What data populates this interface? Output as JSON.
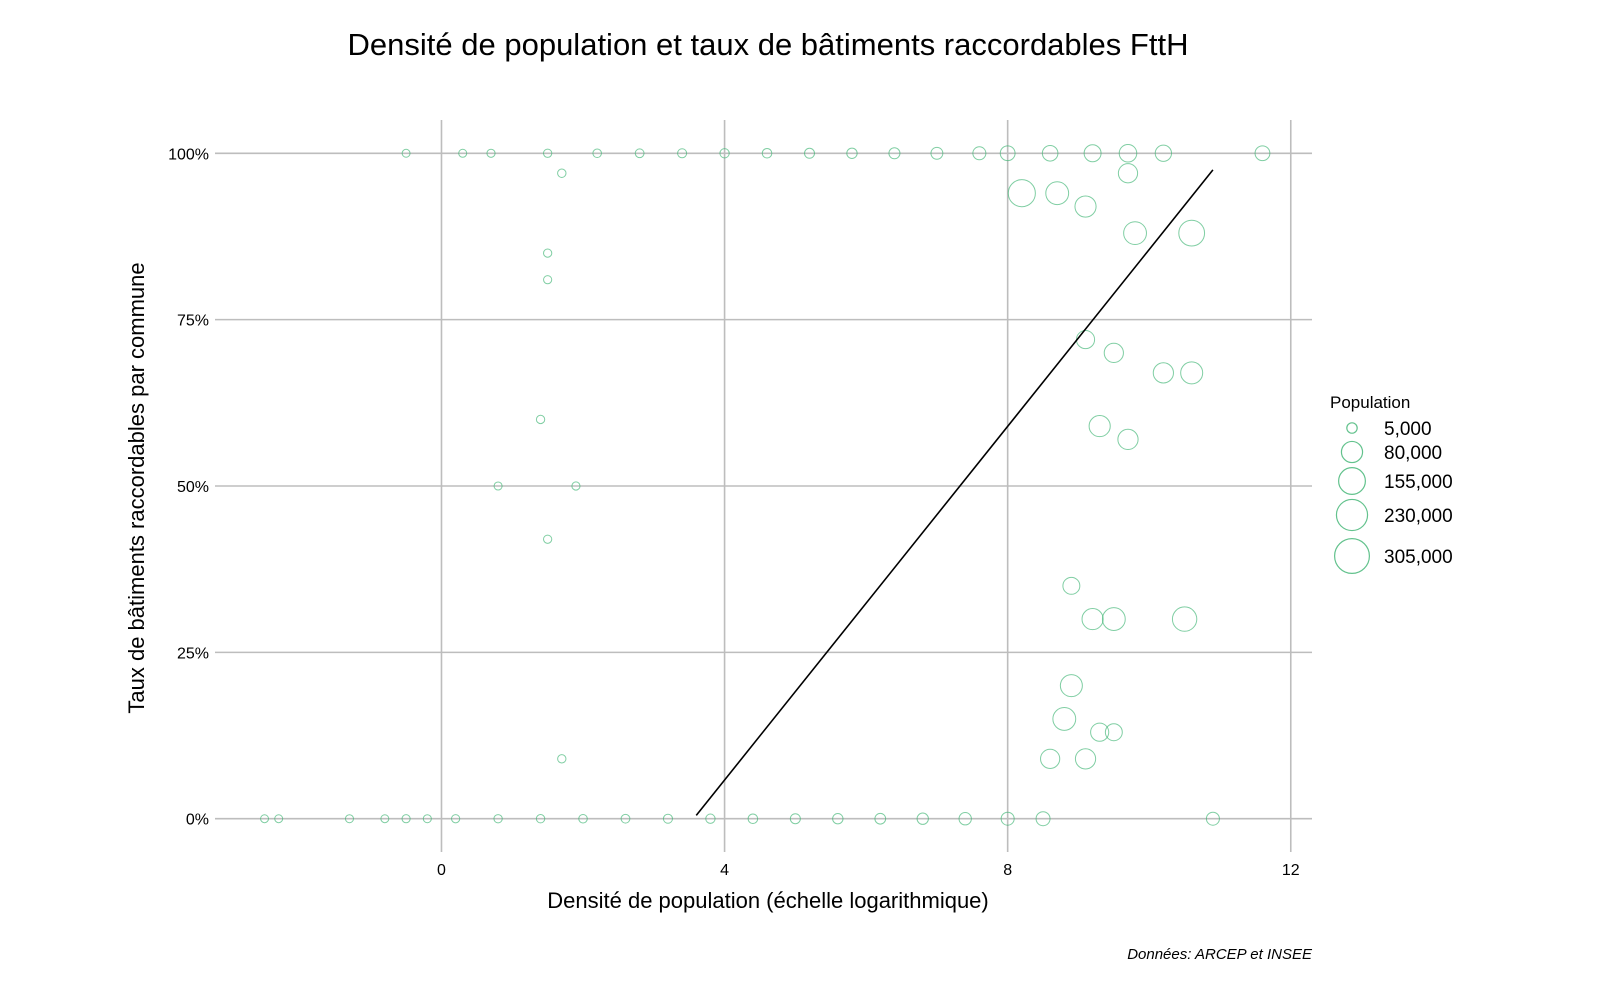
{
  "chart_data": {
    "type": "scatter",
    "title": "Densité de population et taux de bâtiments raccordables FttH",
    "xlabel": "Densité de population (échelle logarithmique)",
    "ylabel": "Taux de bâtiments raccordables par commune",
    "caption": "Données: ARCEP et INSEE",
    "xlim": [
      -3.2,
      12.3
    ],
    "ylim": [
      -0.05,
      1.05
    ],
    "x_ticks": [
      0,
      4,
      8,
      12
    ],
    "x_tick_labels": [
      "0",
      "4",
      "8",
      "12"
    ],
    "y_ticks": [
      0,
      0.25,
      0.5,
      0.75,
      1
    ],
    "y_tick_labels": [
      "0%",
      "25%",
      "50%",
      "75%",
      "100%"
    ],
    "grid": true,
    "legend": {
      "title": "Population",
      "position": "right",
      "sizes": [
        5000,
        80000,
        155000,
        230000,
        305000
      ],
      "labels": [
        "5,000",
        "80,000",
        "155,000",
        "230,000",
        "305,000"
      ]
    },
    "colors": {
      "points": "#3cb371",
      "trend_line": "#000000",
      "grid": "#bdbdbd"
    },
    "trend_line": {
      "x": [
        3.6,
        10.9
      ],
      "y": [
        0.005,
        0.975
      ]
    },
    "series": [
      {
        "points": [
          {
            "x": -2.5,
            "y": 0.0,
            "size": 500
          },
          {
            "x": -2.3,
            "y": 0.0,
            "size": 500
          },
          {
            "x": -1.3,
            "y": 0.0,
            "size": 600
          },
          {
            "x": -0.8,
            "y": 0.0,
            "size": 500
          },
          {
            "x": -0.5,
            "y": 0.0,
            "size": 700
          },
          {
            "x": -0.2,
            "y": 0.0,
            "size": 600
          },
          {
            "x": 0.2,
            "y": 0.0,
            "size": 800
          },
          {
            "x": 0.8,
            "y": 0.0,
            "size": 900
          },
          {
            "x": 1.4,
            "y": 0.0,
            "size": 1000
          },
          {
            "x": 2.0,
            "y": 0.0,
            "size": 1200
          },
          {
            "x": 2.6,
            "y": 0.0,
            "size": 1500
          },
          {
            "x": 3.2,
            "y": 0.0,
            "size": 2000
          },
          {
            "x": 3.8,
            "y": 0.0,
            "size": 2500
          },
          {
            "x": 4.4,
            "y": 0.0,
            "size": 3000
          },
          {
            "x": 5.0,
            "y": 0.0,
            "size": 4000
          },
          {
            "x": 5.6,
            "y": 0.0,
            "size": 5000
          },
          {
            "x": 6.2,
            "y": 0.0,
            "size": 6000
          },
          {
            "x": 6.8,
            "y": 0.0,
            "size": 8000
          },
          {
            "x": 7.4,
            "y": 0.0,
            "size": 12000
          },
          {
            "x": 8.0,
            "y": 0.0,
            "size": 15000
          },
          {
            "x": 8.5,
            "y": 0.0,
            "size": 20000
          },
          {
            "x": 10.9,
            "y": 0.0,
            "size": 15000
          },
          {
            "x": -0.5,
            "y": 1.0,
            "size": 500
          },
          {
            "x": 0.3,
            "y": 1.0,
            "size": 600
          },
          {
            "x": 0.7,
            "y": 1.0,
            "size": 700
          },
          {
            "x": 1.5,
            "y": 1.0,
            "size": 900
          },
          {
            "x": 2.2,
            "y": 1.0,
            "size": 1200
          },
          {
            "x": 2.8,
            "y": 1.0,
            "size": 1500
          },
          {
            "x": 3.4,
            "y": 1.0,
            "size": 2000
          },
          {
            "x": 4.0,
            "y": 1.0,
            "size": 2500
          },
          {
            "x": 4.6,
            "y": 1.0,
            "size": 3000
          },
          {
            "x": 5.2,
            "y": 1.0,
            "size": 4000
          },
          {
            "x": 5.8,
            "y": 1.0,
            "size": 5000
          },
          {
            "x": 6.4,
            "y": 1.0,
            "size": 7000
          },
          {
            "x": 7.0,
            "y": 1.0,
            "size": 10000
          },
          {
            "x": 7.6,
            "y": 1.0,
            "size": 15000
          },
          {
            "x": 8.0,
            "y": 1.0,
            "size": 25000
          },
          {
            "x": 8.6,
            "y": 1.0,
            "size": 30000
          },
          {
            "x": 9.2,
            "y": 1.0,
            "size": 40000
          },
          {
            "x": 9.7,
            "y": 1.0,
            "size": 45000
          },
          {
            "x": 10.2,
            "y": 1.0,
            "size": 35000
          },
          {
            "x": 11.6,
            "y": 1.0,
            "size": 25000
          },
          {
            "x": 0.8,
            "y": 0.5,
            "size": 600
          },
          {
            "x": 1.9,
            "y": 0.5,
            "size": 700
          },
          {
            "x": 1.5,
            "y": 0.42,
            "size": 800
          },
          {
            "x": 1.4,
            "y": 0.6,
            "size": 900
          },
          {
            "x": 1.5,
            "y": 0.85,
            "size": 800
          },
          {
            "x": 1.5,
            "y": 0.81,
            "size": 700
          },
          {
            "x": 1.7,
            "y": 0.97,
            "size": 1000
          },
          {
            "x": 1.7,
            "y": 0.09,
            "size": 900
          },
          {
            "x": 10.6,
            "y": 0.88,
            "size": 140000
          },
          {
            "x": 9.8,
            "y": 0.88,
            "size": 100000
          },
          {
            "x": 10.2,
            "y": 0.67,
            "size": 70000
          },
          {
            "x": 10.6,
            "y": 0.67,
            "size": 90000
          },
          {
            "x": 10.5,
            "y": 0.3,
            "size": 120000
          },
          {
            "x": 9.5,
            "y": 0.3,
            "size": 100000
          },
          {
            "x": 9.2,
            "y": 0.3,
            "size": 80000
          },
          {
            "x": 9.7,
            "y": 0.57,
            "size": 70000
          },
          {
            "x": 9.3,
            "y": 0.59,
            "size": 80000
          },
          {
            "x": 9.1,
            "y": 0.92,
            "size": 80000
          },
          {
            "x": 9.7,
            "y": 0.97,
            "size": 60000
          },
          {
            "x": 8.9,
            "y": 0.2,
            "size": 90000
          },
          {
            "x": 8.8,
            "y": 0.15,
            "size": 100000
          },
          {
            "x": 9.1,
            "y": 0.09,
            "size": 70000
          },
          {
            "x": 9.3,
            "y": 0.13,
            "size": 50000
          },
          {
            "x": 9.5,
            "y": 0.13,
            "size": 40000
          },
          {
            "x": 8.6,
            "y": 0.09,
            "size": 60000
          },
          {
            "x": 8.2,
            "y": 0.94,
            "size": 160000
          },
          {
            "x": 8.7,
            "y": 0.94,
            "size": 100000
          },
          {
            "x": 9.1,
            "y": 0.72,
            "size": 50000
          },
          {
            "x": 9.5,
            "y": 0.7,
            "size": 60000
          },
          {
            "x": 8.9,
            "y": 0.35,
            "size": 40000
          }
        ]
      }
    ]
  }
}
